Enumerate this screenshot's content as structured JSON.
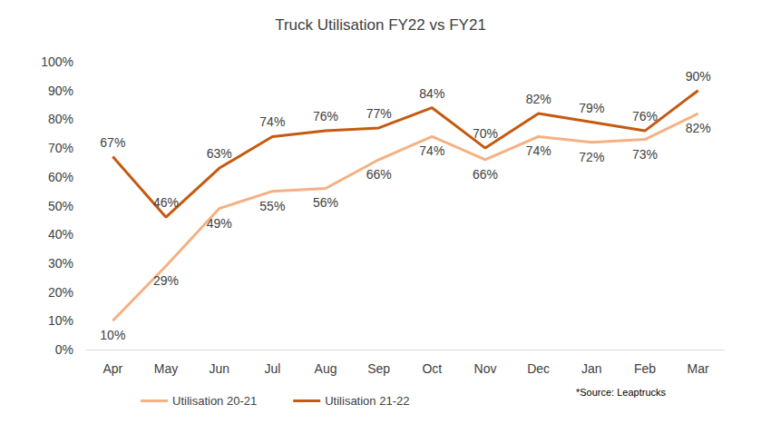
{
  "chart_data": {
    "type": "line",
    "title": "Truck Utilisation FY22 vs FY21",
    "categories": [
      "Apr",
      "May",
      "Jun",
      "Jul",
      "Aug",
      "Sep",
      "Oct",
      "Nov",
      "Dec",
      "Jan",
      "Feb",
      "Mar"
    ],
    "series": [
      {
        "name": "Utilisation 20-21",
        "color": "#f4b183",
        "values": [
          10,
          29,
          49,
          55,
          56,
          66,
          74,
          66,
          74,
          72,
          73,
          82
        ],
        "value_labels": [
          "10%",
          "29%",
          "49%",
          "55%",
          "56%",
          "66%",
          "74%",
          "66%",
          "74%",
          "72%",
          "73%",
          "82%"
        ]
      },
      {
        "name": "Utilisation 21-22",
        "color": "#c55a11",
        "values": [
          67,
          46,
          63,
          74,
          76,
          77,
          84,
          70,
          82,
          79,
          76,
          90
        ],
        "value_labels": [
          "67%",
          "46%",
          "63%",
          "74%",
          "76%",
          "77%",
          "84%",
          "70%",
          "82%",
          "79%",
          "76%",
          "90%"
        ]
      }
    ],
    "ylim": [
      0,
      100
    ],
    "yticks": [
      {
        "value": 0,
        "label": "0%"
      },
      {
        "value": 10,
        "label": "10%"
      },
      {
        "value": 20,
        "label": "20%"
      },
      {
        "value": 30,
        "label": "30%"
      },
      {
        "value": 40,
        "label": "40%"
      },
      {
        "value": 50,
        "label": "50%"
      },
      {
        "value": 60,
        "label": "60%"
      },
      {
        "value": 70,
        "label": "70%"
      },
      {
        "value": 80,
        "label": "80%"
      },
      {
        "value": 90,
        "label": "90%"
      },
      {
        "value": 100,
        "label": "100%"
      }
    ],
    "grid": false,
    "legend": "bottom",
    "data_labels": true,
    "annotations": [
      "*Source: Leaptrucks"
    ]
  }
}
